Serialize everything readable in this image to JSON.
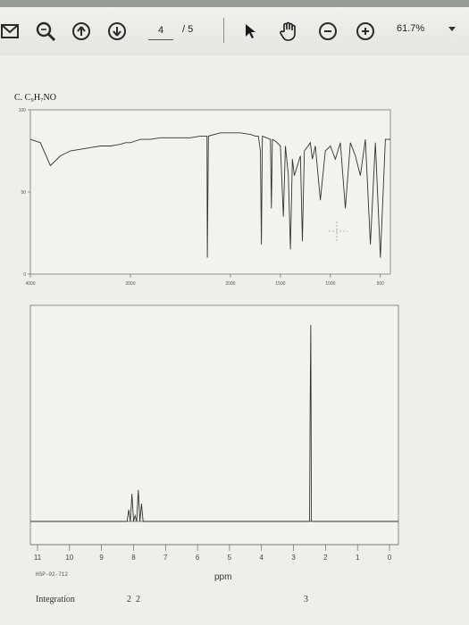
{
  "toolbar": {
    "page_current": "4",
    "page_total": "/ 5",
    "zoom": "61.7%",
    "icons": [
      "mail-icon",
      "zoom-search-icon",
      "prev-page-icon",
      "next-page-icon",
      "pointer-icon",
      "hand-icon",
      "zoom-out-icon",
      "zoom-in-icon"
    ]
  },
  "document": {
    "formula": "C. C₉H₇NO",
    "ppm_label": "ppm",
    "nmr_code": "HSP-02-712",
    "integration_label": "Integration",
    "integration_values": [
      "2",
      "2",
      "3"
    ]
  },
  "chart_data": [
    {
      "type": "line",
      "series": [
        {
          "x": [
            4000,
            3900,
            3800,
            3700,
            3600,
            3500,
            3400,
            3300,
            3200,
            3100,
            3050,
            3000,
            2950,
            2900,
            2850,
            2800,
            2700,
            2600,
            2500,
            2400,
            2300,
            2234,
            2230,
            2220,
            2100,
            2000,
            1900,
            1800,
            1750,
            1720,
            1700,
            1690,
            1680,
            1600,
            1590,
            1580,
            1550,
            1500,
            1470,
            1450,
            1420,
            1400,
            1380,
            1360,
            1300,
            1280,
            1260,
            1200,
            1180,
            1150,
            1100,
            1050,
            1000,
            950,
            900,
            850,
            800,
            750,
            700,
            650,
            600,
            550,
            500,
            450,
            400
          ],
          "y": [
            82,
            80,
            66,
            72,
            75,
            76,
            77,
            78,
            78,
            79,
            80,
            80,
            81,
            82,
            82,
            82,
            83,
            83,
            83,
            83,
            84,
            84,
            10,
            84,
            86,
            86,
            86,
            85,
            84,
            84,
            75,
            18,
            84,
            82,
            40,
            82,
            81,
            78,
            35,
            78,
            60,
            15,
            70,
            60,
            72,
            20,
            75,
            80,
            70,
            78,
            45,
            75,
            78,
            70,
            80,
            40,
            80,
            72,
            60,
            82,
            18,
            80,
            10,
            82,
            82
          ]
        }
      ],
      "ylim": [
        0,
        100
      ],
      "xlim": [
        4000,
        400
      ],
      "x_ticks": [
        4000,
        3000,
        2000,
        1500,
        1000,
        500
      ],
      "y_ticks": [
        0,
        50,
        100
      ]
    },
    {
      "type": "line",
      "series": [
        {
          "x": [
            11,
            9,
            8.2,
            8.15,
            8.1,
            8.05,
            8.0,
            7.95,
            7.9,
            7.85,
            7.8,
            7.75,
            7.7,
            7.6,
            7.2,
            6,
            4,
            3,
            2.5,
            2.48,
            2.46,
            2.45,
            2.44,
            2.42,
            2,
            1,
            0
          ],
          "y": [
            0,
            0,
            0,
            6,
            0,
            14,
            0,
            3,
            0,
            16,
            0,
            9,
            0,
            0,
            0,
            0,
            0,
            0,
            0,
            60,
            100,
            60,
            0,
            0,
            0,
            0,
            0
          ]
        }
      ],
      "xlim": [
        11,
        0
      ],
      "x_ticks": [
        11,
        10,
        9,
        8,
        7,
        6,
        5,
        4,
        3,
        2,
        1,
        0
      ],
      "xlabel": "ppm"
    }
  ]
}
